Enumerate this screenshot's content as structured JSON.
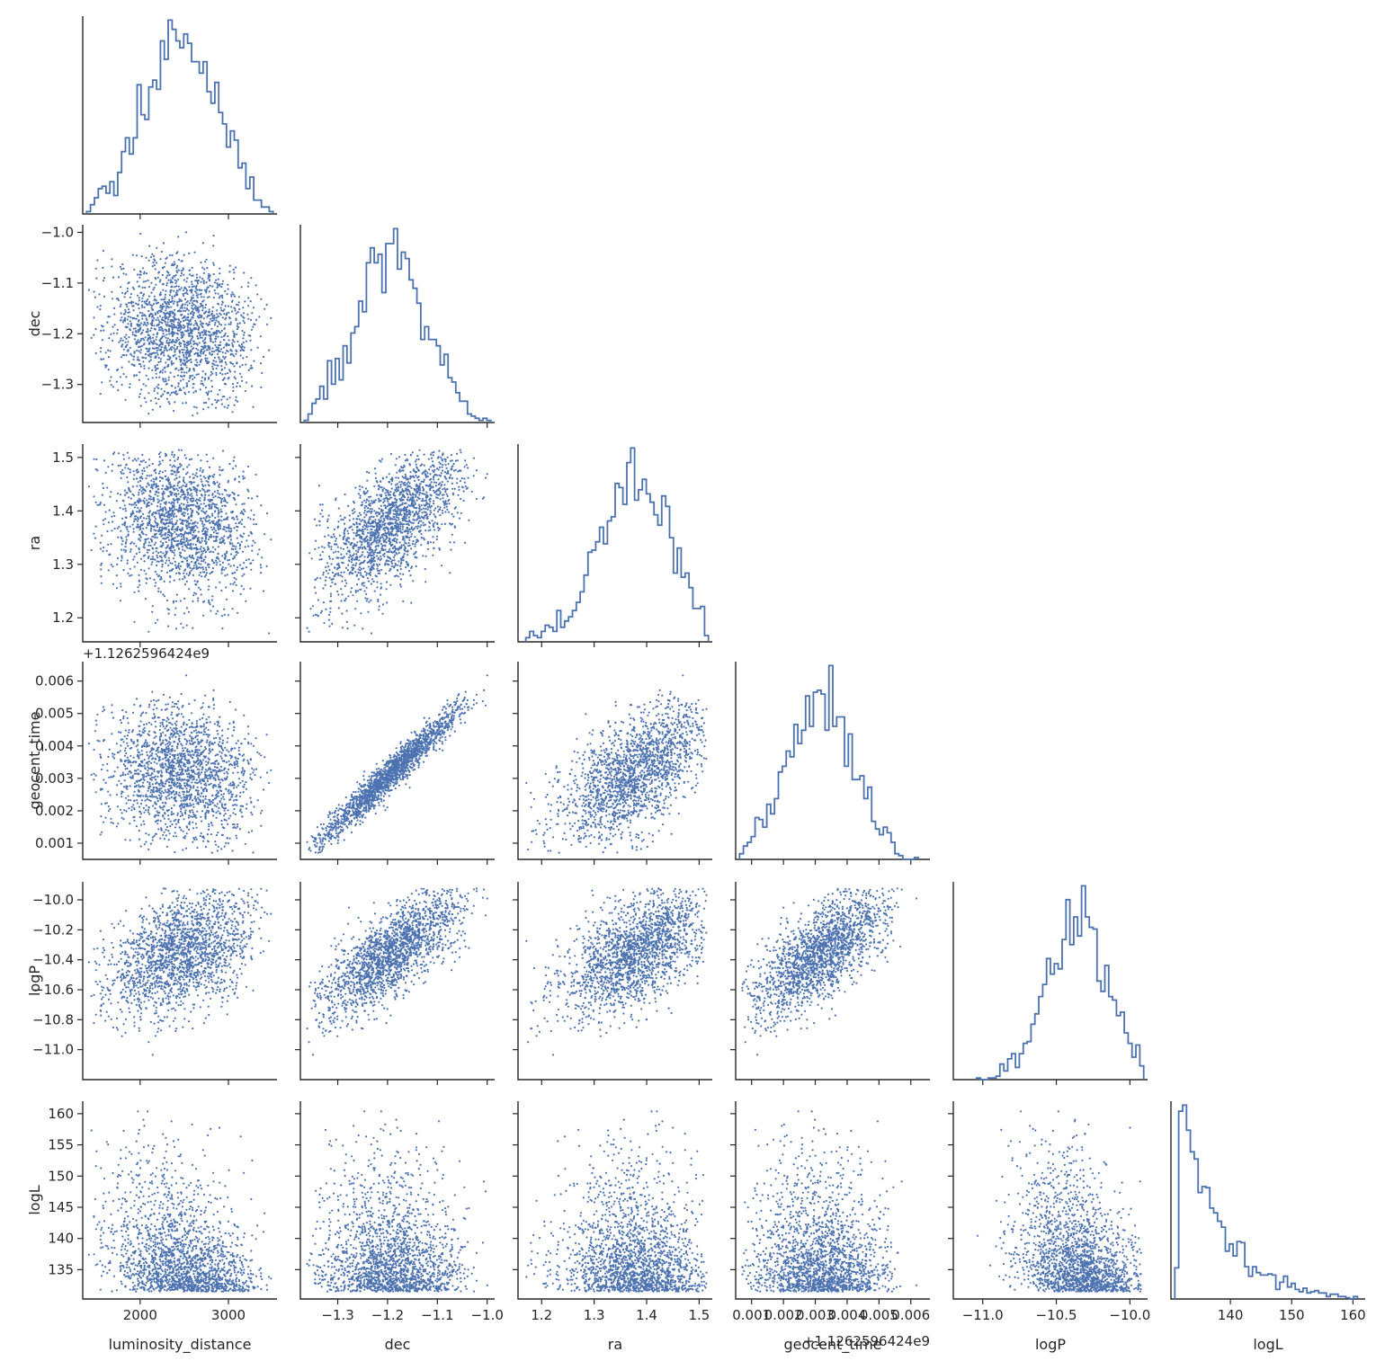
{
  "chart_data": {
    "type": "scatter",
    "colors": {
      "series": "#4c72b0",
      "axis": "#262626"
    },
    "variables": [
      {
        "name": "luminosity_distance",
        "label": "luminosity_distance",
        "range": [
          1350,
          3550
        ],
        "ticks": [
          2000,
          3000
        ],
        "tick_labels": [
          "2000",
          "3000"
        ],
        "mean": 2450,
        "sd": 430,
        "offset_label": ""
      },
      {
        "name": "dec",
        "label": "dec",
        "range": [
          -1.375,
          -0.985
        ],
        "ticks": [
          -1.3,
          -1.2,
          -1.1,
          -1.0
        ],
        "tick_labels": [
          "−1.3",
          "−1.2",
          "−1.1",
          "−1.0"
        ],
        "mean": -1.19,
        "sd": 0.075,
        "offset_label": ""
      },
      {
        "name": "ra",
        "label": "ra",
        "range": [
          1.155,
          1.525
        ],
        "ticks": [
          1.2,
          1.3,
          1.4,
          1.5
        ],
        "tick_labels": [
          "1.2",
          "1.3",
          "1.4",
          "1.5"
        ],
        "mean": 1.38,
        "sd": 0.07,
        "offset_label": ""
      },
      {
        "name": "geocent_time",
        "label": "geocent_time",
        "range": [
          0.0005,
          0.0066
        ],
        "ticks": [
          0.001,
          0.002,
          0.003,
          0.004,
          0.005,
          0.006
        ],
        "tick_labels": [
          "0.001",
          "0.002",
          "0.003",
          "0.004",
          "0.005",
          "0.006"
        ],
        "mean": 0.0032,
        "sd": 0.0011,
        "offset_label": "+1.1262596424e9"
      },
      {
        "name": "logP",
        "label": "logP",
        "range": [
          -11.2,
          -9.88
        ],
        "ticks": [
          -11.0,
          -10.8,
          -10.6,
          -10.4,
          -10.2,
          -10.0
        ],
        "tick_labels": [
          "−11.0",
          "−10.8",
          "−10.6",
          "−10.4",
          "−10.2",
          "−10.0"
        ],
        "x_ticks": [
          -11.0,
          -10.5,
          -10.0
        ],
        "x_tick_labels": [
          "−11.0",
          "−10.5",
          "−10.0"
        ],
        "mean": -10.35,
        "sd": 0.22,
        "offset_label": ""
      },
      {
        "name": "logL",
        "label": "logL",
        "range": [
          130.3,
          162.0
        ],
        "ticks": [
          135,
          140,
          145,
          150,
          155,
          160
        ],
        "tick_labels": [
          "135",
          "140",
          "145",
          "150",
          "155",
          "160"
        ],
        "x_ticks": [
          140,
          150,
          160
        ],
        "x_tick_labels": [
          "140",
          "150",
          "160"
        ],
        "mean": 141,
        "sd": 7,
        "offset_label": ""
      }
    ],
    "correlations": [
      [
        1.0,
        -0.1,
        -0.15,
        -0.1,
        0.4,
        -0.35
      ],
      [
        -0.1,
        1.0,
        0.65,
        0.97,
        0.75,
        -0.05
      ],
      [
        -0.15,
        0.65,
        1.0,
        0.6,
        0.55,
        -0.05
      ],
      [
        -0.1,
        0.97,
        0.6,
        1.0,
        0.7,
        -0.05
      ],
      [
        0.4,
        0.75,
        0.55,
        0.7,
        1.0,
        -0.3
      ],
      [
        -0.35,
        -0.05,
        -0.05,
        -0.05,
        -0.3,
        1.0
      ]
    ],
    "n_samples": 1800,
    "bins": 50,
    "histtype": "step",
    "layout": "lower-triangle corner plot",
    "grid": false,
    "legend": "none"
  }
}
